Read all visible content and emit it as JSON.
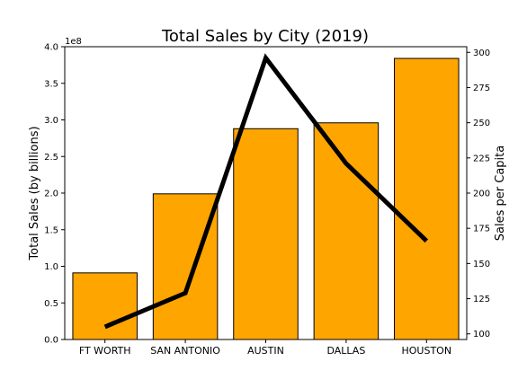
{
  "chart_data": {
    "type": "bar",
    "title": "Total Sales by City (2019)",
    "categories": [
      "FT WORTH",
      "SAN ANTONIO",
      "AUSTIN",
      "DALLAS",
      "HOUSTON"
    ],
    "bar_color": "#FFA500",
    "line_color": "#000000",
    "series": [
      {
        "type": "bar",
        "axis": "left",
        "values": [
          91000000,
          199000000,
          288000000,
          296000000,
          384000000
        ]
      },
      {
        "type": "line",
        "axis": "right",
        "values": [
          105,
          129,
          296,
          221,
          166
        ]
      }
    ],
    "left_axis": {
      "label": "Total Sales (by billions)",
      "offset_label": "1e8",
      "ylim": [
        0,
        400000000
      ],
      "ticks": [
        0,
        50000000,
        100000000,
        150000000,
        200000000,
        250000000,
        300000000,
        350000000,
        400000000
      ],
      "tick_labels": [
        "0.0",
        "0.5",
        "1.0",
        "1.5",
        "2.0",
        "2.5",
        "3.0",
        "3.5",
        "4.0"
      ]
    },
    "right_axis": {
      "label": "Sales per Capita",
      "ylim": [
        96,
        304
      ],
      "ticks": [
        100,
        125,
        150,
        175,
        200,
        225,
        250,
        275,
        300
      ],
      "tick_labels": [
        "100",
        "125",
        "150",
        "175",
        "200",
        "225",
        "250",
        "275",
        "300"
      ]
    },
    "grid": false,
    "legend": "none"
  }
}
